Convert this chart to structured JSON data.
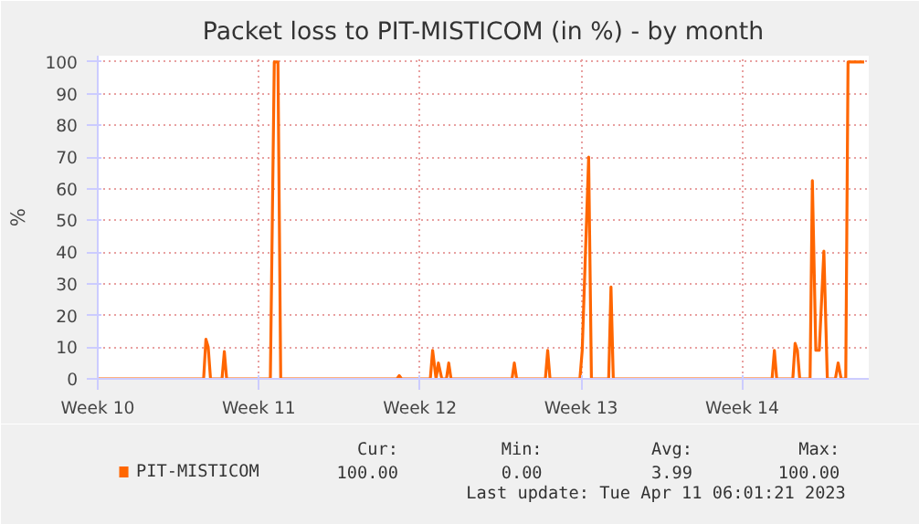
{
  "chart_data": {
    "type": "line",
    "title": "Packet loss to PIT-MISTICOM (in %) - by month",
    "ylabel": "%",
    "x": [
      "2023-03-08T06:00",
      "2023-03-12T20:24",
      "2023-03-12T22:48",
      "2023-03-13T01:12",
      "2023-03-13T03:36",
      "2023-03-13T15:36",
      "2023-03-13T18:00",
      "2023-03-13T20:24",
      "2023-03-15T18:00",
      "2023-03-15T22:05",
      "2023-03-16T01:55",
      "2023-03-16T04:48",
      "2023-03-21T06:00",
      "2023-03-21T08:24",
      "2023-03-21T10:48",
      "2023-03-22T16:48",
      "2023-03-22T19:12",
      "2023-03-22T22:48",
      "2023-03-23T01:12",
      "2023-03-23T04:48",
      "2023-03-23T09:36",
      "2023-03-23T12:00",
      "2023-03-23T14:24",
      "2023-03-26T06:00",
      "2023-03-26T08:24",
      "2023-03-26T10:48",
      "2023-03-27T16:48",
      "2023-03-27T19:12",
      "2023-03-27T21:36",
      "2023-03-29T04:48",
      "2023-03-29T07:12",
      "2023-03-29T13:55",
      "2023-03-29T16:48",
      "2023-03-30T10:48",
      "2023-03-30T13:12",
      "2023-03-30T15:36",
      "2023-04-06T13:12",
      "2023-04-06T15:36",
      "2023-04-06T18:00",
      "2023-04-07T10:48",
      "2023-04-07T13:12",
      "2023-04-07T15:36",
      "2023-04-07T18:00",
      "2023-04-08T04:48",
      "2023-04-08T07:12",
      "2023-04-08T10:48",
      "2023-04-08T14:24",
      "2023-04-08T19:12",
      "2023-04-08T22:48",
      "2023-04-09T07:12",
      "2023-04-09T10:05",
      "2023-04-09T13:12",
      "2023-04-09T18:00",
      "2023-04-09T20:24",
      "2023-04-10T13:12"
    ],
    "series": [
      {
        "name": "PIT-MISTICOM",
        "color": "#ff6600",
        "values": [
          0,
          0,
          12.5,
          10,
          0,
          0,
          8.6,
          0,
          0,
          100,
          100,
          0,
          0,
          1,
          0,
          0,
          9,
          0,
          5,
          0,
          0,
          5,
          0,
          0,
          5,
          0,
          0,
          9,
          0,
          0,
          9,
          70,
          0,
          0,
          29,
          0,
          0,
          9,
          0,
          0,
          11.2,
          9,
          0,
          0,
          62.6,
          9,
          9,
          40.3,
          0,
          0,
          5,
          0,
          0,
          100,
          100
        ]
      }
    ],
    "xlim": [
      "2023-03-08T06:00",
      "2023-04-10T18:00"
    ],
    "xticks": [
      {
        "value": "2023-03-08T06:00",
        "label": "Week 10"
      },
      {
        "value": "2023-03-15T06:00",
        "label": "Week 11"
      },
      {
        "value": "2023-03-22T06:00",
        "label": "Week 12"
      },
      {
        "value": "2023-03-29T06:00",
        "label": "Week 13"
      },
      {
        "value": "2023-04-05T06:00",
        "label": "Week 14"
      }
    ],
    "ylim": [
      0,
      102
    ],
    "yticks": [
      0,
      10,
      20,
      30,
      40,
      50,
      60,
      70,
      80,
      90,
      100
    ],
    "grid": true,
    "legend": "bottom left",
    "marker": "none",
    "line_style": "solid",
    "annotations": [
      "Cur:",
      "Min:",
      "Avg:",
      "Max:",
      "100.00",
      "0.00",
      "3.99",
      "100.00",
      "Last update: Tue Apr 11 06:01:21 2023"
    ]
  }
}
